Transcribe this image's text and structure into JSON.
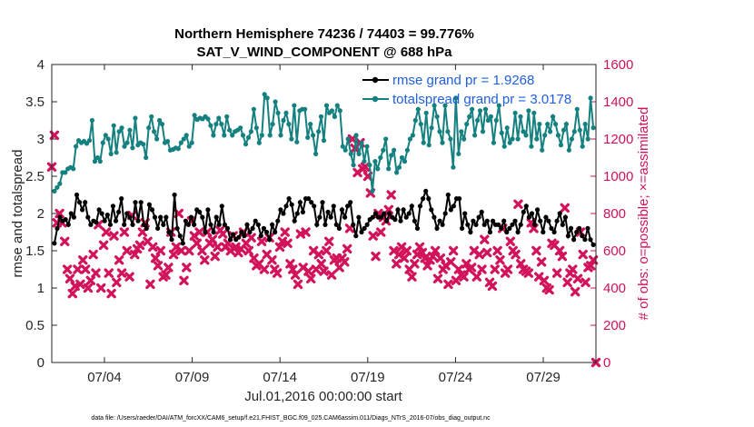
{
  "chart_data": {
    "type": "line",
    "title": "Northern Hemisphere 74236 / 74403 = 99.776%",
    "subtitle": "SAT_V_WIND_COMPONENT @ 688 hPa",
    "xlabel": "Jul.01,2016 00:00:00 start",
    "ylabel": "rmse and totalspread",
    "y2label": "# of obs: o=possible; ×=assimilated",
    "xlim": [
      0.0,
      31.0
    ],
    "ylim": [
      0,
      4
    ],
    "y2lim": [
      0,
      1600
    ],
    "xticks": [
      3,
      8,
      13,
      18,
      23,
      28
    ],
    "xtick_labels": [
      "07/04",
      "07/09",
      "07/14",
      "07/19",
      "07/24",
      "07/29"
    ],
    "yticks": [
      "0",
      "0.5",
      "1",
      "1.5",
      "2",
      "2.5",
      "3",
      "3.5",
      "4"
    ],
    "y2ticks": [
      "0",
      "200",
      "400",
      "600",
      "800",
      "1000",
      "1200",
      "1400",
      "1600"
    ],
    "footnote": "data file: /Users/raeder/DAI/ATM_forcXX/CAM6_setup/f.e21.FHIST_BGC.f09_025.CAM6assim.011/Diags_NTrS_2016-07/obs_diag_output.nc",
    "legend_position": "top-right",
    "series": [
      {
        "name": "rmse grand pr = 1.9268",
        "color": "#000000",
        "axis": "left",
        "values": [
          1.6,
          1.8,
          1.95,
          1.9,
          1.92,
          1.85,
          2.0,
          1.95,
          2.25,
          2.15,
          2.05,
          2.15,
          1.95,
          1.85,
          1.9,
          1.88,
          2.05,
          2.0,
          1.9,
          1.98,
          1.85,
          2.1,
          1.9,
          2.02,
          2.2,
          1.85,
          2.0,
          1.95,
          1.85,
          2.15,
          1.9,
          2.15,
          1.85,
          1.8,
          2.12,
          2.05,
          1.95,
          1.8,
          1.95,
          1.85,
          1.95,
          1.75,
          1.65,
          2.25,
          1.8,
          1.7,
          1.6,
          1.9,
          1.85,
          1.95,
          1.85,
          2.05,
          2.02,
          1.95,
          1.75,
          2.05,
          1.85,
          1.75,
          1.95,
          1.85,
          2.1,
          1.85,
          1.8,
          1.65,
          1.72,
          1.65,
          1.68,
          1.75,
          1.7,
          1.85,
          1.75,
          1.8,
          1.9,
          1.85,
          1.7,
          1.8,
          1.75,
          1.65,
          1.85,
          1.75,
          1.9,
          2.05,
          2.0,
          2.1,
          2.2,
          2.12,
          1.9,
          2.0,
          2.15,
          2.02,
          2.2,
          2.2,
          2.15,
          2.1,
          1.85,
          1.95,
          2.15,
          1.85,
          2.02,
          1.95,
          2.1,
          1.85,
          1.8,
          2.05,
          1.95,
          2.1,
          2.15,
          1.85,
          1.7,
          1.95,
          1.75,
          1.8,
          1.85,
          1.92,
          1.95,
          2.0,
          1.95,
          1.95,
          2.0,
          1.9,
          2.0,
          1.95,
          1.92,
          2.05,
          1.9,
          2.05,
          1.95,
          2.0,
          2.1,
          1.9,
          1.8,
          2.1,
          2.2,
          2.3,
          2.2,
          2.05,
          1.95,
          1.8,
          1.9,
          1.85,
          2.0,
          2.25,
          2.05,
          2.1,
          2.2,
          2.2,
          1.8,
          2.0,
          1.85,
          1.75,
          1.9,
          1.85,
          1.95,
          2.02,
          1.85,
          1.9,
          1.75,
          1.9,
          1.85,
          1.85,
          1.8,
          1.9,
          1.75,
          1.8,
          1.85,
          1.9,
          1.75,
          1.85,
          2.02,
          2.1,
          1.95,
          2.0,
          1.85,
          2.05,
          1.9,
          1.75,
          1.95,
          1.9,
          1.8,
          1.75,
          1.9,
          2.0,
          1.85,
          1.95,
          1.7,
          1.8,
          1.65,
          1.75,
          1.8,
          1.7,
          1.65,
          1.8,
          1.65,
          1.58
        ]
      },
      {
        "name": "totalspread grand pr = 3.0178",
        "color": "#14807f",
        "axis": "left",
        "values": [
          2.3,
          2.35,
          2.4,
          2.55,
          2.55,
          2.6,
          2.62,
          2.6,
          2.9,
          2.98,
          2.95,
          2.97,
          2.94,
          2.98,
          3.25,
          2.7,
          2.75,
          2.7,
          2.95,
          3.05,
          3.0,
          2.8,
          3.18,
          2.82,
          3.1,
          3.15,
          2.9,
          2.95,
          3.12,
          2.88,
          3.28,
          2.92,
          2.95,
          2.93,
          2.75,
          3.15,
          3.3,
          3.1,
          3.0,
          3.25,
          3.2,
          2.95,
          2.97,
          2.85,
          2.86,
          2.88,
          2.87,
          2.95,
          3.0,
          3.05,
          2.9,
          2.95,
          3.32,
          3.26,
          3.28,
          3.27,
          3.3,
          3.27,
          3.18,
          3.05,
          3.2,
          3.28,
          3.2,
          3.05,
          3.3,
          3.12,
          3.05,
          3.1,
          3.12,
          3.15,
          3.05,
          2.93,
          3.02,
          3.1,
          3.4,
          3.15,
          2.95,
          3.05,
          3.6,
          3.55,
          3.05,
          3.2,
          3.5,
          3.35,
          3.05,
          3.25,
          3.35,
          3.2,
          3.0,
          3.45,
          2.96,
          3.38,
          3.4,
          3.4,
          3.02,
          3.2,
          3.05,
          2.8,
          3.1,
          3.3,
          2.98,
          3.45,
          3.35,
          3.38,
          3.3,
          3.45,
          3.38,
          2.9,
          2.85,
          3.0,
          2.8,
          2.65,
          3.05,
          2.8,
          2.95,
          2.7,
          2.9,
          2.65,
          2.3,
          2.7,
          2.6,
          2.75,
          2.85,
          3.0,
          2.6,
          2.78,
          2.85,
          2.55,
          2.62,
          2.75,
          2.7,
          2.85,
          3.0,
          3.05,
          3.25,
          3.4,
          3.2,
          2.95,
          3.35,
          2.92,
          3.15,
          3.45,
          3.3,
          3.1,
          2.95,
          3.45,
          3.1,
          3.0,
          2.62,
          3.55,
          2.8,
          3.1,
          3.0,
          3.2,
          3.3,
          3.4,
          3.05,
          3.25,
          3.38,
          3.1,
          3.4,
          3.25,
          3.3,
          2.95,
          3.25,
          3.45,
          3.08,
          2.9,
          3.15,
          2.95,
          3.0,
          3.35,
          3.0,
          3.3,
          3.1,
          3.05,
          3.38,
          2.9,
          3.35,
          3.0,
          3.2,
          2.85,
          3.05,
          3.2,
          3.1,
          3.3,
          3.2,
          3.05,
          2.92,
          3.12,
          3.2,
          2.85,
          3.0,
          3.1,
          3.4,
          3.12,
          2.9,
          3.2,
          3.0,
          3.55,
          3.15
        ]
      },
      {
        "name": "# of obs assimilated",
        "color": "#d2125a",
        "axis": "right",
        "marker": "x",
        "values": [
          1050,
          1220,
          750,
          800,
          750,
          650,
          500,
          450,
          370,
          410,
          500,
          420,
          550,
          500,
          400,
          440,
          580,
          480,
          740,
          400,
          630,
          700,
          480,
          370,
          680,
          430,
          550,
          480,
          700,
          600,
          460,
          790,
          580,
          610,
          630,
          700,
          750,
          650,
          420,
          620,
          560,
          520,
          600,
          460,
          470,
          510,
          700,
          580,
          620,
          800,
          600,
          440,
          510,
          600,
          760,
          680,
          640,
          700,
          600,
          550,
          700,
          640,
          660,
          570,
          620,
          710,
          690,
          620,
          640,
          600,
          680,
          620,
          590,
          610,
          700,
          640,
          600,
          670,
          560,
          520,
          530,
          650,
          500,
          580,
          670,
          550,
          500,
          480,
          620,
          650,
          700,
          640,
          530,
          500,
          470,
          420,
          690,
          510,
          700,
          490,
          450,
          600,
          500,
          580,
          530,
          490,
          600,
          650,
          470,
          550,
          560,
          510,
          560,
          540,
          610,
          720,
          1200,
          1150,
          1020,
          1180,
          1040,
          1050,
          1000,
          910,
          680,
          570,
          800,
          700,
          780,
          760,
          820,
          900,
          600,
          530,
          580,
          620,
          560,
          600,
          500,
          460,
          530,
          580,
          620,
          590,
          560,
          520,
          550,
          570,
          600,
          450,
          560,
          500,
          520,
          420,
          540,
          600,
          440,
          500,
          470,
          460,
          530,
          500,
          510,
          600,
          460,
          580,
          500,
          660,
          590,
          430,
          410,
          500,
          600,
          550,
          720,
          480,
          500,
          650,
          600,
          580,
          850,
          530,
          500,
          490,
          480,
          750,
          720,
          600,
          460,
          540,
          440,
          400,
          390,
          640,
          630,
          480,
          600,
          570,
          830,
          430,
          480,
          500,
          380,
          450,
          700,
          580,
          430,
          510,
          520,
          550,
          0
        ]
      }
    ]
  }
}
